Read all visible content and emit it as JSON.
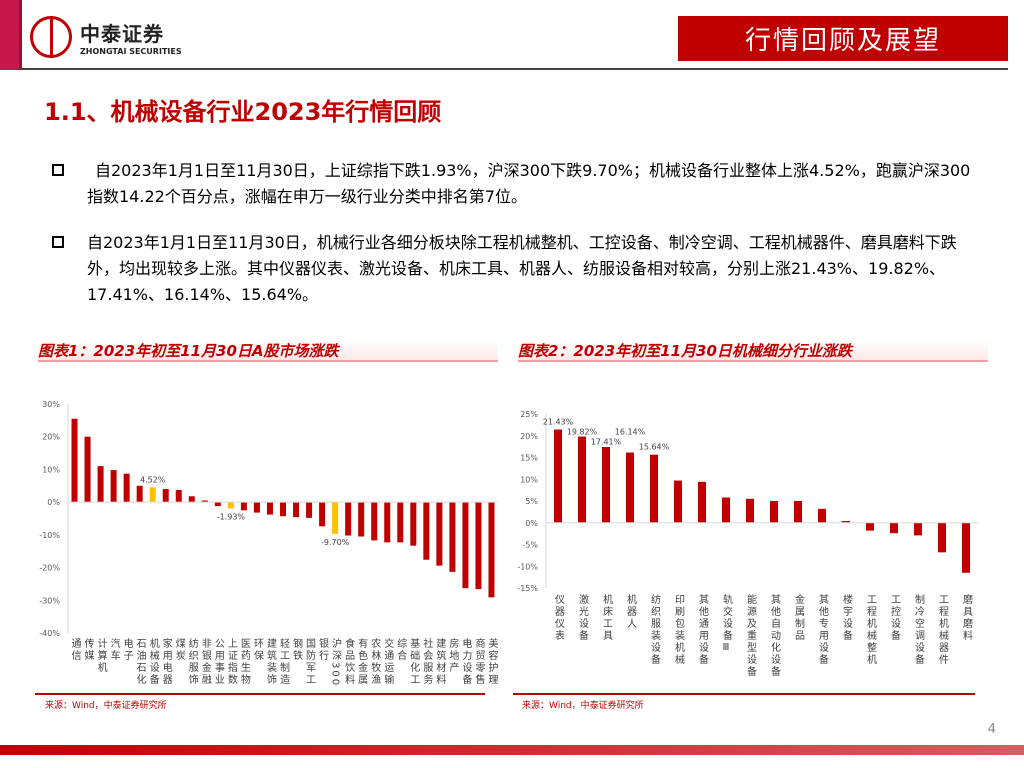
{
  "header": {
    "logo_cn": "中泰证券",
    "logo_en": "ZHONGTAI SECURITIES",
    "section_badge": "行情回顾及展望"
  },
  "title": "1.1、机械设备行业2023年行情回顾",
  "paragraphs": [
    "自2023年1月1日至11月30日，上证综指下跌1.93%，沪深300下跌9.70%；机械设备行业整体上涨4.52%，跑赢沪深300指数14.22个百分点，涨幅在申万一级行业分类中排名第7位。",
    "自2023年1月1日至11月30日，机械行业各细分板块除工程机械整机、工控设备、制冷空调、工程机械器件、磨具磨料下跌外，均出现较多上涨。其中仪器仪表、激光设备、机床工具、机器人、纺服设备相对较高，分别上涨21.43%、19.82%、17.41%、16.14%、15.64%。"
  ],
  "source": "来源：Wind，中泰证券研究所",
  "page_number": "4",
  "colors": {
    "brand": "#c00000",
    "highlight": "#ffc000"
  },
  "chart_data": [
    {
      "type": "bar",
      "title": "图表1：2023年初至11月30日A股市场涨跌",
      "ylim": [
        -40,
        30
      ],
      "yticks": [
        30,
        20,
        10,
        0,
        -10,
        -20,
        -30,
        -40
      ],
      "ytick_format": "%",
      "categories": [
        "通信",
        "传媒",
        "计算机",
        "汽车",
        "电子",
        "石油石化",
        "机械设备",
        "家用电器",
        "煤炭",
        "纺织服饰",
        "非银金融",
        "公用事业",
        "上证指数",
        "医药生物",
        "环保",
        "建筑装饰",
        "轻工制造",
        "钢铁",
        "国防军工",
        "银行",
        "沪深300",
        "食品饮料",
        "有色金属",
        "农林牧渔",
        "交通运输",
        "综合",
        "基础化工",
        "社会服务",
        "建筑材料",
        "房地产",
        "电力设备",
        "商贸零售",
        "美容护理"
      ],
      "values": [
        25.5,
        20.0,
        11.0,
        9.8,
        8.7,
        5.0,
        4.52,
        4.0,
        3.7,
        1.8,
        0.5,
        -1.2,
        -1.93,
        -2.5,
        -3.2,
        -3.8,
        -4.3,
        -4.6,
        -4.8,
        -7.4,
        -9.7,
        -10.2,
        -10.5,
        -11.7,
        -12.3,
        -12.3,
        -13.3,
        -17.6,
        -19.4,
        -21.3,
        -26.3,
        -26.6,
        -29.1
      ],
      "highlighted": [
        "机械设备",
        "上证指数",
        "沪深300"
      ],
      "data_labels": {
        "机械设备": "4.52%",
        "上证指数": "-1.93%",
        "沪深300": "-9.70%"
      }
    },
    {
      "type": "bar",
      "title": "图表2：2023年初至11月30日机械细分行业涨跌",
      "ylim": [
        -15,
        25
      ],
      "yticks": [
        25,
        20,
        15,
        10,
        5,
        0,
        -5,
        -10,
        -15
      ],
      "ytick_format": "%",
      "categories": [
        "仪器仪表",
        "激光设备",
        "机床工具",
        "机器人",
        "纺织服装设备",
        "印刷包装机械",
        "其他通用设备",
        "轨交设备Ⅲ",
        "能源及重型设备",
        "其他自动化设备",
        "金属制品",
        "其他专用设备",
        "楼宇设备",
        "工程机械整机",
        "工控设备",
        "制冷空调设备",
        "工程机械器件",
        "磨具磨料"
      ],
      "values": [
        21.43,
        19.82,
        17.41,
        16.14,
        15.64,
        9.7,
        9.4,
        5.8,
        5.5,
        5.0,
        5.0,
        3.2,
        0.4,
        -1.8,
        -2.4,
        -2.9,
        -6.8,
        -11.5
      ],
      "data_labels": {
        "仪器仪表": "21.43%",
        "激光设备": "19.82%",
        "机床工具": "17.41%",
        "机器人": "16.14%",
        "纺织服装设备": "15.64%"
      }
    }
  ]
}
